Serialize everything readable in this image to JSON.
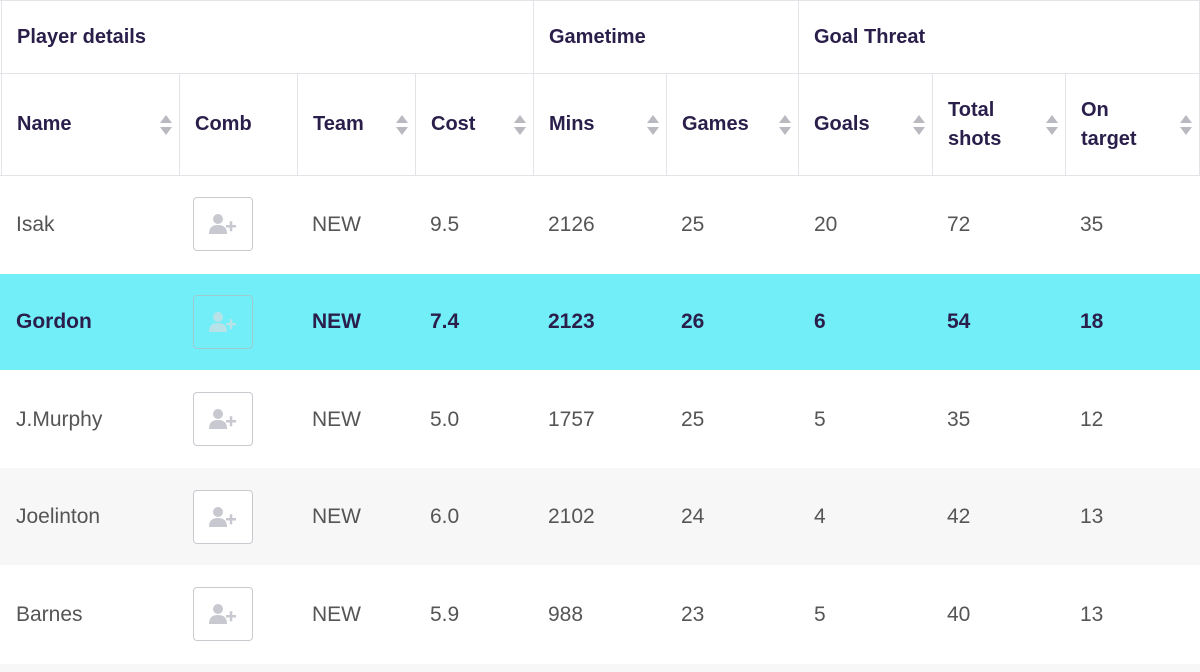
{
  "groups": {
    "player_details": "Player details",
    "gametime": "Gametime",
    "goal_threat": "Goal Threat"
  },
  "columns": {
    "name": "Name",
    "comb": "Comb",
    "team": "Team",
    "cost": "Cost",
    "mins": "Mins",
    "games": "Games",
    "goals": "Goals",
    "total_shots_1": "Total",
    "total_shots_2": "shots",
    "on_target_1": "On",
    "on_target_2": "target"
  },
  "icons": {
    "sort": "sort-up-down-icon",
    "add_player": "add-user-icon"
  },
  "colors": {
    "highlight_row": "#72eef9",
    "alt_row": "#f7f7f8",
    "header_text": "#2a1e4a"
  },
  "rows": [
    {
      "name": "Isak",
      "team": "NEW",
      "cost": "9.5",
      "mins": "2126",
      "games": "25",
      "goals": "20",
      "total_shots": "72",
      "on_target": "35"
    },
    {
      "name": "Gordon",
      "team": "NEW",
      "cost": "7.4",
      "mins": "2123",
      "games": "26",
      "goals": "6",
      "total_shots": "54",
      "on_target": "18"
    },
    {
      "name": "J.Murphy",
      "team": "NEW",
      "cost": "5.0",
      "mins": "1757",
      "games": "25",
      "goals": "5",
      "total_shots": "35",
      "on_target": "12"
    },
    {
      "name": "Joelinton",
      "team": "NEW",
      "cost": "6.0",
      "mins": "2102",
      "games": "24",
      "goals": "4",
      "total_shots": "42",
      "on_target": "13"
    },
    {
      "name": "Barnes",
      "team": "NEW",
      "cost": "5.9",
      "mins": "988",
      "games": "23",
      "goals": "5",
      "total_shots": "40",
      "on_target": "13"
    }
  ]
}
